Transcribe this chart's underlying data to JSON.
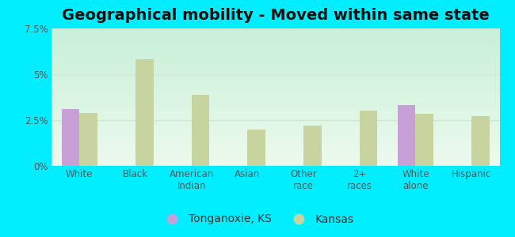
{
  "title": "Geographical mobility - Moved within same state",
  "categories": [
    "White",
    "Black",
    "American\nIndian",
    "Asian",
    "Other\nrace",
    "2+\nraces",
    "White\nalone",
    "Hispanic"
  ],
  "tonganoxie_values": [
    3.1,
    0.0,
    0.0,
    0.0,
    0.0,
    0.0,
    3.3,
    0.0
  ],
  "kansas_values": [
    2.9,
    5.8,
    3.9,
    2.0,
    2.2,
    3.0,
    2.85,
    2.7
  ],
  "tonganoxie_color": "#c8a0d8",
  "kansas_color": "#c8d4a0",
  "outer_bg": "#00eeff",
  "plot_bg_top": "#c8f0d8",
  "plot_bg_bottom": "#edfaed",
  "grid_color": "#d0e8d0",
  "ylim_max": 7.5,
  "yticks": [
    0.0,
    2.5,
    5.0,
    7.5
  ],
  "ytick_labels": [
    "0%",
    "2.5%",
    "5%",
    "7.5%"
  ],
  "legend_tonganoxie": "Tonganoxie, KS",
  "legend_kansas": "Kansas",
  "bar_width": 0.32,
  "title_fontsize": 14,
  "tick_fontsize": 8.5,
  "legend_fontsize": 10
}
